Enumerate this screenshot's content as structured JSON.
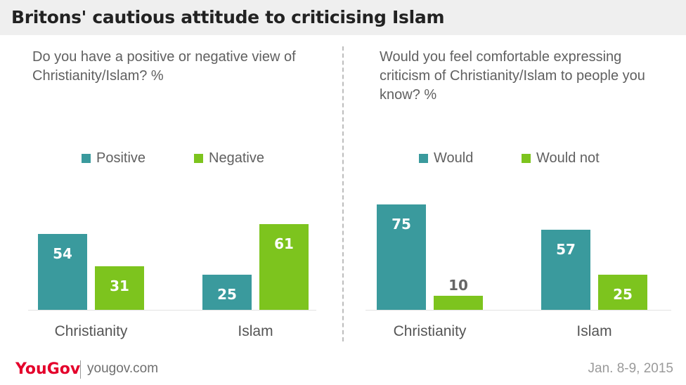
{
  "title": "Britons' cautious attitude to criticising Islam",
  "colors": {
    "teal": "#3a9a9d",
    "green": "#7dc41e",
    "title_bg": "#efefef",
    "brand": "#e4002b"
  },
  "chart_data": [
    {
      "type": "bar",
      "question": "Do you have a positive or negative view of Christianity/Islam? %",
      "categories": [
        "Christianity",
        "Islam"
      ],
      "series": [
        {
          "name": "Positive",
          "values": [
            54,
            25
          ]
        },
        {
          "name": "Negative",
          "values": [
            31,
            61
          ]
        }
      ],
      "legend": "top"
    },
    {
      "type": "bar",
      "question": "Would you feel comfortable expressing criticism of Christianity/Islam to people you know? %",
      "categories": [
        "Christianity",
        "Islam"
      ],
      "series": [
        {
          "name": "Would",
          "values": [
            75,
            57
          ]
        },
        {
          "name": "Would not",
          "values": [
            10,
            25
          ]
        }
      ],
      "legend": "top"
    }
  ],
  "footer": {
    "logo": "YouGov",
    "site": "yougov.com",
    "date": "Jan. 8-9, 2015"
  }
}
